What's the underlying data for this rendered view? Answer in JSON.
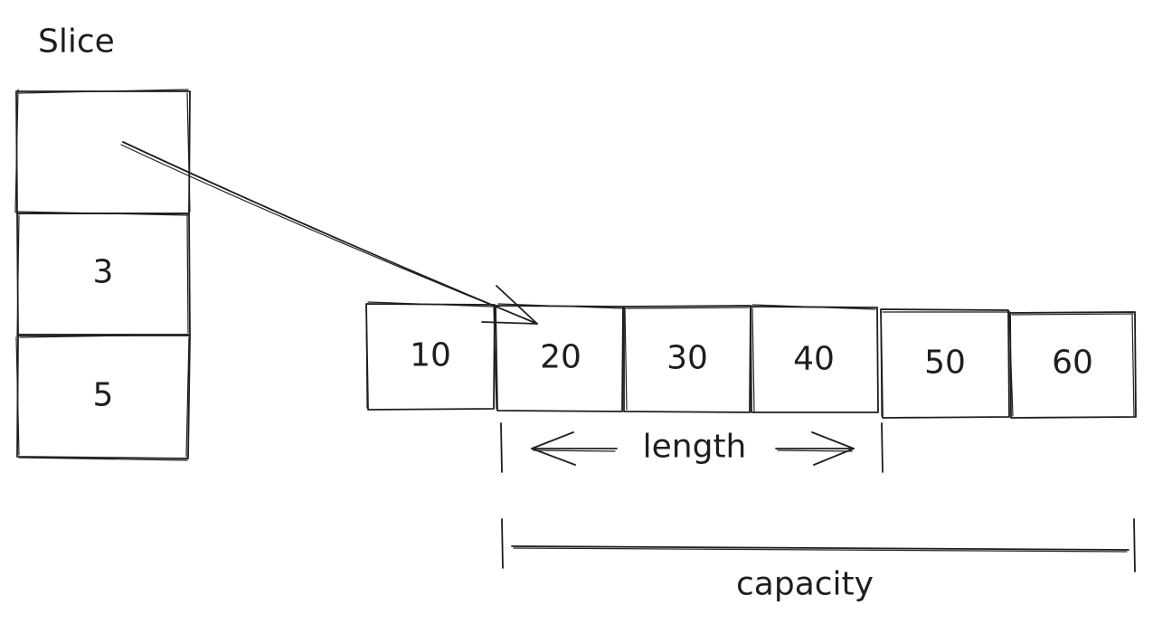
{
  "slice": {
    "title": "Slice",
    "cells": [
      "",
      "3",
      "5"
    ]
  },
  "array": {
    "cells": [
      "10",
      "20",
      "30",
      "40",
      "50",
      "60"
    ]
  },
  "annotations": {
    "length": "length",
    "capacity": "capacity"
  }
}
